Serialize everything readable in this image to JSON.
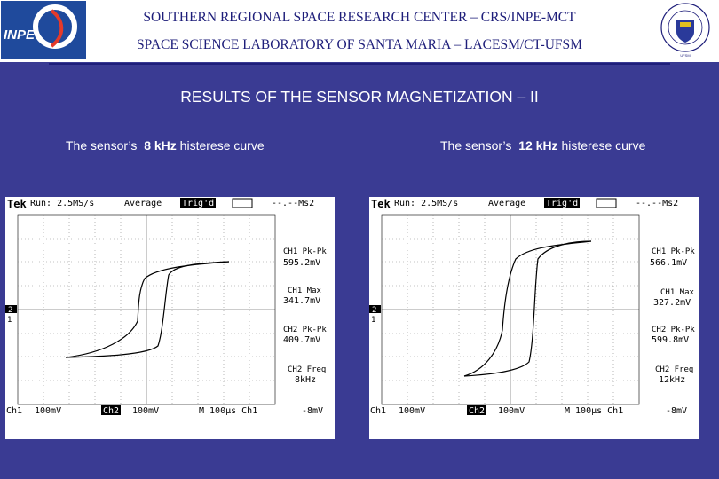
{
  "header": {
    "line1": "SOUTHERN REGIONAL SPACE RESEARCH CENTER – CRS/INPE-MCT",
    "line2": "SPACE SCIENCE LABORATORY OF SANTA MARIA – LACESM/CT-UFSM",
    "inpe_logo_text": "INPE",
    "ufsm_logo_text": "Universidade Federal de Santa Maria"
  },
  "title": "RESULTS OF THE SENSOR MAGNETIZATION – II",
  "panels": [
    {
      "caption_prefix": "The sensor’s",
      "caption_freq": "8 kHz",
      "caption_suffix": "histerese curve",
      "scope": {
        "brand": "Tek",
        "run": "Run: 2.5MS/s",
        "mode": "Average",
        "trig": "Trig'd",
        "delta": "--.--Ms2",
        "m1_label": "CH1 Pk-Pk",
        "m1_value": "595.2mV",
        "m2_label": "CH1 Max",
        "m2_value": "341.7mV",
        "m3_label": "CH2 Pk-Pk",
        "m3_value": "409.7mV",
        "m4_label": "CH2 Freq",
        "m4_value": "8kHz",
        "ch1": "Ch1",
        "ch1_scale": "100mV",
        "ch2": "Ch2",
        "ch2_scale": "100mV",
        "timebase": "M 100µs Ch1",
        "trig_level": "-8mV",
        "marker2": "2",
        "marker1": "1"
      }
    },
    {
      "caption_prefix": "The sensor’s",
      "caption_freq": "12 kHz",
      "caption_suffix": "histerese curve",
      "scope": {
        "brand": "Tek",
        "run": "Run: 2.5MS/s",
        "mode": "Average",
        "trig": "Trig'd",
        "delta": "--.--Ms2",
        "m1_label": "CH1 Pk-Pk",
        "m1_value": "566.1mV",
        "m2_label": "CH1 Max",
        "m2_value": "327.2mV",
        "m3_label": "CH2 Pk-Pk",
        "m3_value": "599.8mV",
        "m4_label": "CH2 Freq",
        "m4_value": "12kHz",
        "ch1": "Ch1",
        "ch1_scale": "100mV",
        "ch2": "Ch2",
        "ch2_scale": "100mV",
        "timebase": "M 100µs Ch1",
        "trig_level": "-8mV",
        "marker2": "2",
        "marker1": "1"
      }
    }
  ],
  "colors": {
    "background": "#3a3b93",
    "header_text": "#1e1e7a",
    "scope_bg": "#ffffff"
  }
}
